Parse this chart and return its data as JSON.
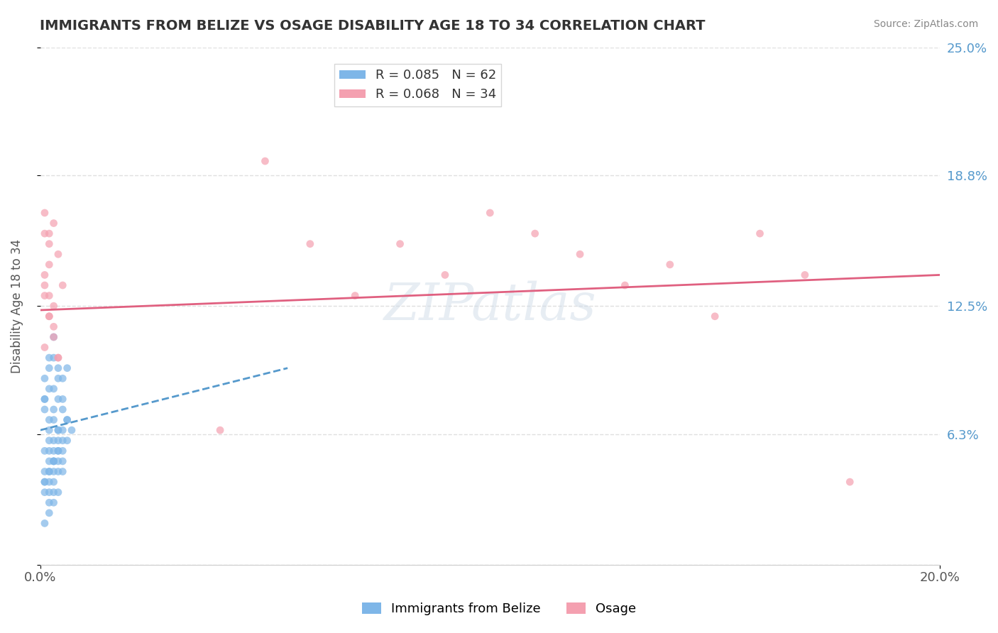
{
  "title": "IMMIGRANTS FROM BELIZE VS OSAGE DISABILITY AGE 18 TO 34 CORRELATION CHART",
  "source_text": "Source: ZipAtlas.com",
  "xlabel": "",
  "ylabel": "Disability Age 18 to 34",
  "xmin": 0.0,
  "xmax": 0.2,
  "ymin": 0.0,
  "ymax": 0.25,
  "yticks": [
    0.0,
    0.063,
    0.125,
    0.188,
    0.25
  ],
  "ytick_labels": [
    "",
    "6.3%",
    "12.5%",
    "18.8%",
    "25.0%"
  ],
  "xtick_labels": [
    "0.0%",
    "20.0%"
  ],
  "legend_entries": [
    {
      "label": "R = 0.085   N = 62",
      "color": "#7eb6e8"
    },
    {
      "label": "R = 0.068   N = 34",
      "color": "#f4a0b0"
    }
  ],
  "watermark": "ZIPatlas",
  "belize_scatter_x": [
    0.002,
    0.003,
    0.001,
    0.004,
    0.005,
    0.006,
    0.002,
    0.001,
    0.003,
    0.004,
    0.007,
    0.005,
    0.002,
    0.003,
    0.001,
    0.002,
    0.003,
    0.004,
    0.005,
    0.006,
    0.001,
    0.002,
    0.003,
    0.004,
    0.002,
    0.001,
    0.003,
    0.005,
    0.002,
    0.003,
    0.004,
    0.006,
    0.001,
    0.002,
    0.003,
    0.004,
    0.005,
    0.002,
    0.003,
    0.001,
    0.002,
    0.003,
    0.004,
    0.005,
    0.002,
    0.003,
    0.004,
    0.001,
    0.002,
    0.003,
    0.004,
    0.005,
    0.006,
    0.002,
    0.003,
    0.001,
    0.004,
    0.005,
    0.002,
    0.003,
    0.004,
    0.001
  ],
  "belize_scatter_y": [
    0.095,
    0.11,
    0.08,
    0.09,
    0.075,
    0.07,
    0.085,
    0.09,
    0.1,
    0.095,
    0.065,
    0.08,
    0.1,
    0.085,
    0.075,
    0.065,
    0.07,
    0.08,
    0.09,
    0.095,
    0.08,
    0.07,
    0.075,
    0.065,
    0.06,
    0.055,
    0.05,
    0.045,
    0.055,
    0.06,
    0.065,
    0.07,
    0.04,
    0.045,
    0.05,
    0.055,
    0.06,
    0.035,
    0.04,
    0.045,
    0.05,
    0.055,
    0.06,
    0.065,
    0.045,
    0.05,
    0.055,
    0.035,
    0.04,
    0.045,
    0.05,
    0.055,
    0.06,
    0.03,
    0.035,
    0.04,
    0.045,
    0.05,
    0.025,
    0.03,
    0.035,
    0.02
  ],
  "osage_scatter_x": [
    0.001,
    0.002,
    0.001,
    0.003,
    0.002,
    0.004,
    0.001,
    0.005,
    0.002,
    0.003,
    0.001,
    0.002,
    0.003,
    0.004,
    0.002,
    0.001,
    0.003,
    0.002,
    0.001,
    0.004,
    0.05,
    0.08,
    0.1,
    0.12,
    0.14,
    0.06,
    0.09,
    0.11,
    0.07,
    0.13,
    0.15,
    0.16,
    0.04,
    0.17,
    0.18
  ],
  "osage_scatter_y": [
    0.17,
    0.155,
    0.16,
    0.165,
    0.145,
    0.15,
    0.14,
    0.135,
    0.16,
    0.125,
    0.13,
    0.12,
    0.11,
    0.1,
    0.13,
    0.135,
    0.115,
    0.12,
    0.105,
    0.1,
    0.195,
    0.155,
    0.17,
    0.15,
    0.145,
    0.155,
    0.14,
    0.16,
    0.13,
    0.135,
    0.12,
    0.16,
    0.065,
    0.14,
    0.04
  ],
  "belize_color": "#7eb6e8",
  "osage_color": "#f4a0b0",
  "belize_trend_x": [
    0.0,
    0.055
  ],
  "belize_trend_y": [
    0.065,
    0.095
  ],
  "osage_trend_x": [
    0.0,
    0.2
  ],
  "osage_trend_y": [
    0.123,
    0.14
  ],
  "belize_trend_color": "#5599cc",
  "osage_trend_color": "#e06080",
  "grid_color": "#e0e0e0",
  "background_color": "#ffffff"
}
